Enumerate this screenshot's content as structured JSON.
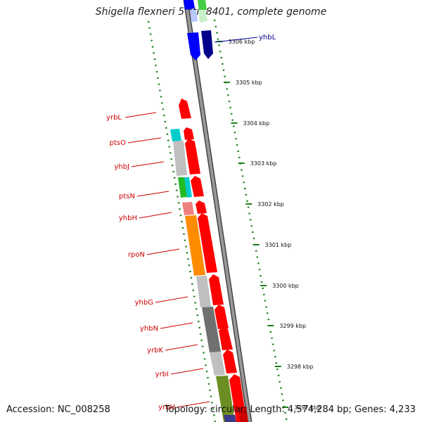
{
  "title": "Shigella flexneri 5 str. 8401, complete genome",
  "accession": "Accession: NC_008258",
  "topology": "Topology: circular; Length: 4,574,284 bp; Genes: 4,233",
  "ticks": [
    "3306 kbp",
    "3305 kbp",
    "3304 kbp",
    "3303 kbp",
    "3302 kbp",
    "3301 kbp",
    "3300 kbp",
    "3299 kbp",
    "3298 kbp",
    "3297 kbp"
  ],
  "genes_left": [
    "yrbL",
    "ptsO",
    "yhbJ",
    "ptsN",
    "yhbH",
    "rpoN",
    "yhbG",
    "yhbN",
    "yrbK",
    "yrbI",
    "yrbH"
  ],
  "genes_right": [
    "yhbL"
  ],
  "colors": {
    "cds": "#ff0000",
    "backbone": "#888888",
    "tick": "#1a7f1a",
    "blue": "#0000ff",
    "navy": "#00008b",
    "label_red": "#cc0000",
    "orange": "#ff8c00",
    "cyan": "#00cccc",
    "green": "#22bb22",
    "olive": "#6b8e23",
    "lightgrey": "#c0c0c0",
    "darkgrey": "#707070",
    "pink": "#f08080"
  }
}
